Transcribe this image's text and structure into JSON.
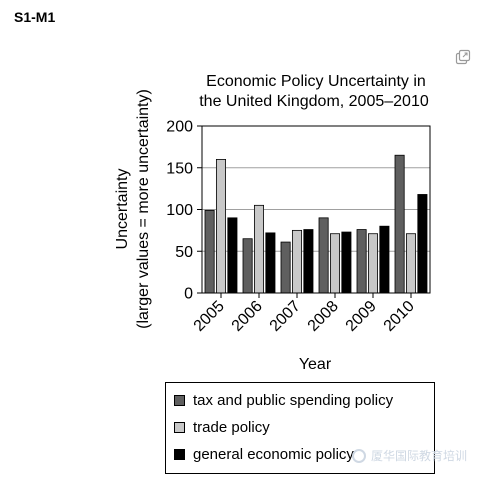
{
  "page": {
    "section_label": "S1-M1"
  },
  "icons": {
    "expand": "expand-icon"
  },
  "chart_data": {
    "type": "bar",
    "title_line1": "Economic Policy Uncertainty in",
    "title_line2": "the United Kingdom, 2005–2010",
    "xlabel": "Year",
    "ylabel_line1": "Uncertainty",
    "ylabel_line2": "(larger values = more uncertainty)",
    "ylim": [
      0,
      200
    ],
    "yticks": [
      "0",
      "50",
      "100",
      "150",
      "200"
    ],
    "categories": [
      "2005",
      "2006",
      "2007",
      "2008",
      "2009",
      "2010"
    ],
    "grid": true,
    "legend_position": "bottom",
    "series": [
      {
        "name": "tax and public spending policy",
        "color": "#5f5f5f",
        "values": [
          99,
          65,
          61,
          90,
          76,
          165
        ]
      },
      {
        "name": "trade policy",
        "color": "#c8c8c8",
        "values": [
          160,
          105,
          75,
          71,
          71,
          71
        ]
      },
      {
        "name": "general economic policy",
        "color": "#000000",
        "values": [
          90,
          72,
          76,
          73,
          80,
          118
        ]
      }
    ]
  },
  "watermark": {
    "text": "厦华国际教育培训"
  }
}
